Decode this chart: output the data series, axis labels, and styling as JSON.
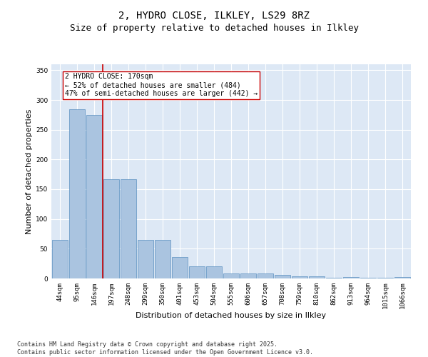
{
  "title1": "2, HYDRO CLOSE, ILKLEY, LS29 8RZ",
  "title2": "Size of property relative to detached houses in Ilkley",
  "xlabel": "Distribution of detached houses by size in Ilkley",
  "ylabel": "Number of detached properties",
  "categories": [
    "44sqm",
    "95sqm",
    "146sqm",
    "197sqm",
    "248sqm",
    "299sqm",
    "350sqm",
    "401sqm",
    "453sqm",
    "504sqm",
    "555sqm",
    "606sqm",
    "657sqm",
    "708sqm",
    "759sqm",
    "810sqm",
    "862sqm",
    "913sqm",
    "964sqm",
    "1015sqm",
    "1066sqm"
  ],
  "values": [
    65,
    285,
    275,
    167,
    167,
    65,
    65,
    36,
    20,
    20,
    8,
    8,
    8,
    6,
    4,
    4,
    1,
    3,
    1,
    1,
    3
  ],
  "bar_color": "#aac4e0",
  "bar_edge_color": "#5a8fc0",
  "red_line_x": 2.5,
  "annotation_text": "2 HYDRO CLOSE: 170sqm\n← 52% of detached houses are smaller (484)\n47% of semi-detached houses are larger (442) →",
  "annotation_box_color": "#ffffff",
  "annotation_box_edge_color": "#cc0000",
  "vline_color": "#cc0000",
  "ylim": [
    0,
    360
  ],
  "yticks": [
    0,
    50,
    100,
    150,
    200,
    250,
    300,
    350
  ],
  "background_color": "#dde8f5",
  "grid_color": "#ffffff",
  "footer_text": "Contains HM Land Registry data © Crown copyright and database right 2025.\nContains public sector information licensed under the Open Government Licence v3.0.",
  "title_fontsize": 10,
  "subtitle_fontsize": 9,
  "axis_label_fontsize": 8,
  "tick_fontsize": 6.5,
  "annotation_fontsize": 7,
  "footer_fontsize": 6
}
